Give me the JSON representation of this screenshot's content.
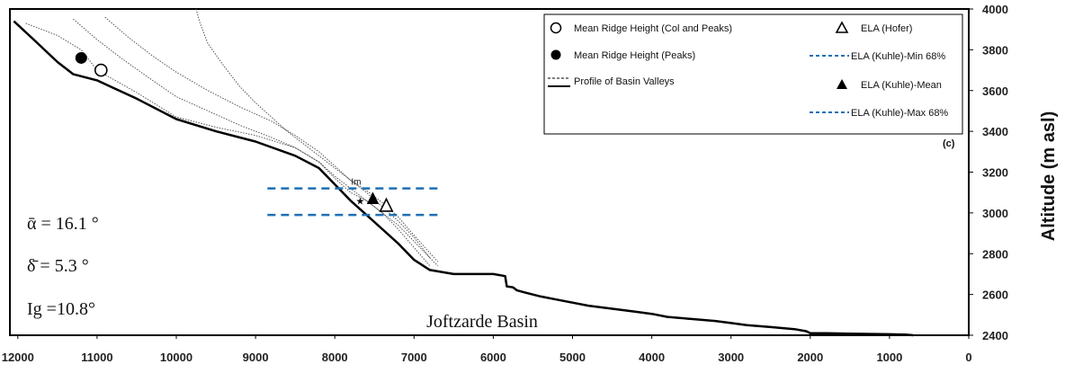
{
  "chart_data": {
    "type": "line",
    "panel_label": "(c)",
    "ylabel": "Altitude (m asl)",
    "xlim": [
      12100,
      0
    ],
    "ylim": [
      2400,
      4000
    ],
    "x_ticks": [
      12000,
      11000,
      10000,
      9000,
      8000,
      7000,
      6000,
      5000,
      4000,
      3000,
      2000,
      1000,
      0
    ],
    "y_ticks": [
      2400,
      2600,
      2800,
      3000,
      3200,
      3400,
      3600,
      3800,
      4000
    ],
    "basin_name": "Joftzarde Basin",
    "stats": [
      "ᾱ  = 16.1 °",
      "δ̄  = 5.3 °",
      "Ig =10.8°"
    ],
    "im_label": "Im",
    "legend": [
      {
        "label": "Mean Ridge Height (Col and Peaks)",
        "marker": "open-circle"
      },
      {
        "label": "ELA (Hofer)",
        "marker": "open-triangle"
      },
      {
        "label": "Mean Ridge Height (Peaks)",
        "marker": "filled-circle"
      },
      {
        "label": "ELA (Kuhle)-Min 68%",
        "marker": "blue-dash"
      },
      {
        "label": "Profile of Basin Valleys",
        "marker": "profile-lines"
      },
      {
        "label": "ELA (Kuhle)-Mean",
        "marker": "filled-triangle"
      },
      {
        "label": "ELA (Kuhle)-Max 68%",
        "marker": "blue-dash"
      }
    ],
    "colors": {
      "ela_dash": "#1f6fb5",
      "main_profile": "#000000",
      "other_profiles": "#555555"
    },
    "main_profile": {
      "x": [
        12050,
        11800,
        11500,
        11300,
        11000,
        10500,
        10000,
        9500,
        9000,
        8500,
        8200,
        8000,
        7800,
        7600,
        7400,
        7200,
        7000,
        6800,
        6500,
        6200,
        6000,
        5850,
        5830,
        5750,
        5700,
        5600,
        5400,
        5200,
        5000,
        4800,
        4500,
        4200,
        4000,
        3800,
        3500,
        3200,
        3000,
        2800,
        2500,
        2200,
        2050,
        2000,
        1800,
        1500,
        1200,
        1000,
        800,
        700
      ],
      "y": [
        3940,
        3850,
        3740,
        3680,
        3650,
        3560,
        3460,
        3400,
        3350,
        3280,
        3220,
        3140,
        3060,
        2990,
        2920,
        2850,
        2770,
        2720,
        2700,
        2700,
        2700,
        2690,
        2640,
        2635,
        2620,
        2610,
        2590,
        2575,
        2560,
        2545,
        2530,
        2515,
        2505,
        2490,
        2480,
        2470,
        2460,
        2450,
        2440,
        2430,
        2420,
        2410,
        2410,
        2408,
        2406,
        2405,
        2403,
        2400
      ]
    },
    "valley_profiles": [
      {
        "x": [
          11900,
          11500,
          11200,
          11000,
          10500,
          10000,
          9500,
          9000,
          8500,
          8200,
          8000,
          7800,
          7600,
          7400,
          7200,
          7000,
          6800,
          6700
        ],
        "y": [
          3930,
          3870,
          3800,
          3700,
          3590,
          3470,
          3420,
          3380,
          3320,
          3250,
          3170,
          3100,
          3060,
          3000,
          2940,
          2860,
          2780,
          2740
        ]
      },
      {
        "x": [
          11300,
          11000,
          10700,
          10300,
          10000,
          9600,
          9200,
          8800,
          8500,
          8200,
          8000,
          7800,
          7600,
          7400,
          7200,
          7000,
          6800
        ],
        "y": [
          3950,
          3850,
          3760,
          3650,
          3570,
          3500,
          3430,
          3370,
          3320,
          3250,
          3180,
          3120,
          3060,
          3000,
          2920,
          2830,
          2740
        ]
      },
      {
        "x": [
          10900,
          10600,
          10300,
          10000,
          9600,
          9200,
          8800,
          8500,
          8200,
          8000,
          7800,
          7600,
          7400,
          7200,
          7000,
          6700
        ],
        "y": [
          3960,
          3860,
          3770,
          3690,
          3600,
          3520,
          3450,
          3380,
          3300,
          3230,
          3160,
          3110,
          3050,
          2980,
          2890,
          2760
        ]
      },
      {
        "x": [
          9750,
          9700,
          9600,
          9400,
          9200,
          9000,
          8800,
          8600,
          8400,
          8200,
          8000,
          7800,
          7600,
          7400,
          7200,
          7000,
          6800
        ],
        "y": [
          4000,
          3930,
          3830,
          3720,
          3620,
          3540,
          3470,
          3400,
          3340,
          3280,
          3220,
          3160,
          3100,
          3030,
          2960,
          2880,
          2780
        ]
      }
    ],
    "points": {
      "ridge_col_peaks": {
        "x": 10950,
        "y": 3700
      },
      "ridge_peaks": {
        "x": 11200,
        "y": 3760
      },
      "ela_hofer": {
        "x": 7350,
        "y": 3035
      },
      "ela_kuhle_mean": {
        "x": 7520,
        "y": 3070
      },
      "im": {
        "x": 7680,
        "y": 3060
      }
    },
    "ela_kuhle_min_68": {
      "x_start": 8850,
      "x_end": 6680,
      "y": 2990
    },
    "ela_kuhle_max_68": {
      "x_start": 8850,
      "x_end": 6680,
      "y": 3120
    }
  }
}
